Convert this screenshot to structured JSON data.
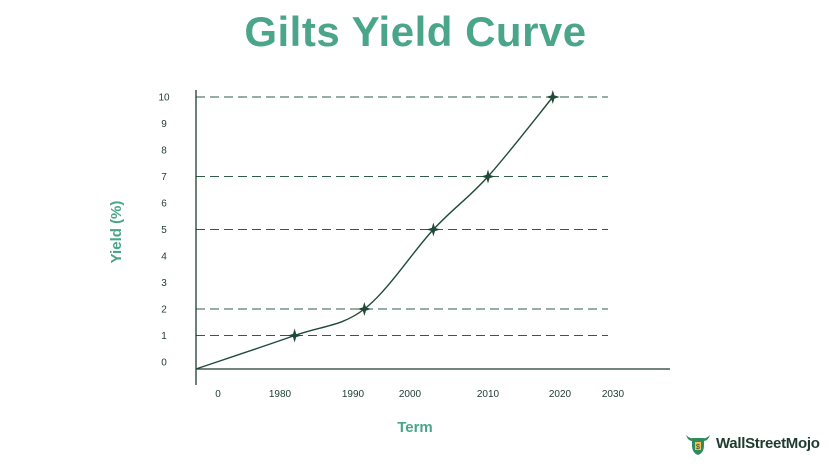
{
  "title": "Gilts Yield Curve",
  "colors": {
    "title": "#4aa58a",
    "line": "#1f4a38",
    "dashed": "#2f5d48",
    "axis": "#1f3b2f"
  },
  "brand": {
    "name": "WallStreetMojo",
    "icon": "bull-logo-icon"
  },
  "chart_data": {
    "type": "line",
    "xlabel": "Term",
    "ylabel": "Yield (%)",
    "x_ticks": [
      "0",
      "1980",
      "1990",
      "2000",
      "2010",
      "2020",
      "2030"
    ],
    "y_ticks": [
      "0",
      "1",
      "2",
      "3",
      "4",
      "5",
      "6",
      "7",
      "8",
      "9",
      "10"
    ],
    "ylim": [
      0,
      10
    ],
    "reference_lines_y": [
      1,
      2,
      5,
      7,
      10
    ],
    "markers": [
      {
        "x": 1982,
        "y": 1
      },
      {
        "x": 1992,
        "y": 2
      },
      {
        "x": 2003,
        "y": 5
      },
      {
        "x": 2010,
        "y": 7
      },
      {
        "x": 2019,
        "y": 10
      }
    ],
    "legend": "none",
    "grid": false
  }
}
